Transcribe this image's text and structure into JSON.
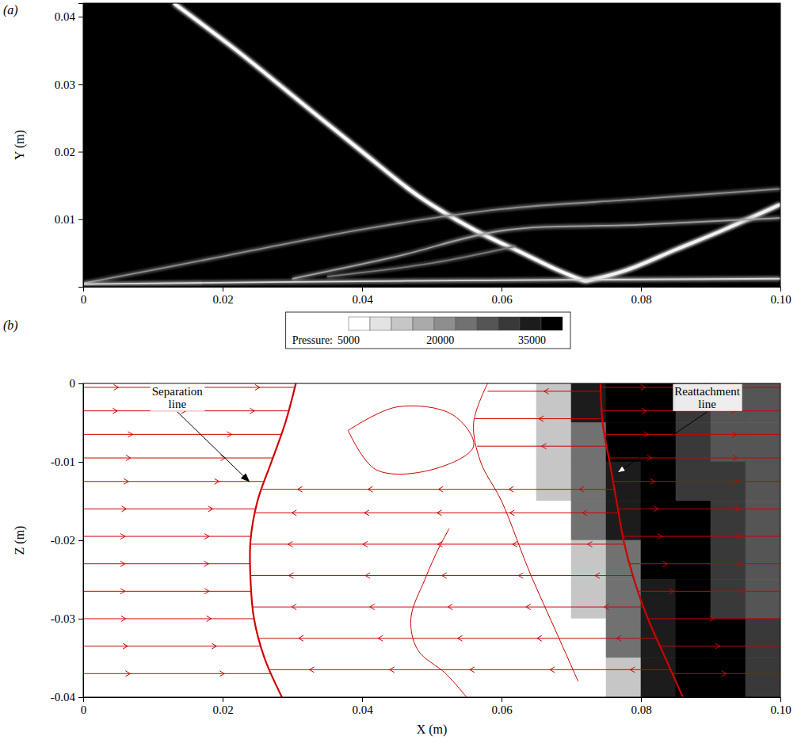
{
  "chart_data": [
    {
      "type": "line",
      "title": "(a)",
      "ylabel": "Y (m)",
      "color": "#000000",
      "xlim": [
        0,
        0.1
      ],
      "ylim": [
        0,
        0.042
      ],
      "xticks": [
        0,
        0.02,
        0.04,
        0.06,
        0.08,
        {
          "value": 0.1,
          "label": "0.10"
        }
      ],
      "yticks": [
        0.01,
        0.02,
        0.03,
        0.04
      ],
      "series": [
        {
          "color": "#ffffff",
          "line_style": "bold",
          "x": [
            0.013,
            0.022,
            0.031,
            0.04,
            0.048,
            0.056,
            0.063,
            0.068,
            0.072
          ],
          "values": [
            0.042,
            0.035,
            0.0275,
            0.02,
            0.0135,
            0.0085,
            0.005,
            0.0025,
            0.0008
          ]
        },
        {
          "color": "#f2f2f2",
          "line_style": "bold",
          "x": [
            0.072,
            0.078,
            0.085,
            0.092,
            0.1
          ],
          "values": [
            0.0008,
            0.0025,
            0.0055,
            0.0085,
            0.0122
          ]
        },
        {
          "color": "#8c8c8c",
          "line_style": "solid",
          "x": [
            0,
            0.02,
            0.04,
            0.06,
            0.08,
            0.1
          ],
          "values": [
            0.0005,
            0.0045,
            0.0085,
            0.0115,
            0.013,
            0.0145
          ]
        },
        {
          "color": "#a0a0a0",
          "line_style": "solid",
          "x": [
            0.03,
            0.045,
            0.06,
            0.08,
            0.1
          ],
          "values": [
            0.0012,
            0.0045,
            0.0083,
            0.0092,
            0.0102
          ]
        },
        {
          "color": "#787878",
          "line_style": "solid",
          "x": [
            0.035,
            0.05,
            0.062
          ],
          "values": [
            0.0015,
            0.0035,
            0.006
          ]
        },
        {
          "color": "#d8d8d8",
          "line_style": "solid",
          "x": [
            0,
            0.05,
            0.1
          ],
          "values": [
            0.0004,
            0.0009,
            0.0012
          ]
        }
      ]
    },
    {
      "type": "heatmap",
      "title": "(b)",
      "xlabel": "X (m)",
      "ylabel": "Z (m)",
      "xlim": [
        0,
        0.1
      ],
      "ylim": [
        -0.04,
        0
      ],
      "xticks": [
        0,
        0.02,
        0.04,
        0.06,
        0.08,
        {
          "value": 0.1,
          "label": "0.10"
        }
      ],
      "yticks": [
        0,
        -0.01,
        -0.02,
        -0.03,
        -0.04
      ],
      "clabel": "Pressure:",
      "clim": [
        5000,
        40000
      ],
      "cticks": [
        5000,
        20000,
        35000
      ],
      "cbins": [
        5000,
        8500,
        12000,
        15500,
        19000,
        22500,
        26000,
        29500,
        33000,
        36500,
        40000
      ],
      "xbins": [
        0,
        0.005,
        0.01,
        0.015,
        0.02,
        0.025,
        0.03,
        0.035,
        0.04,
        0.045,
        0.05,
        0.055,
        0.06,
        0.065,
        0.07,
        0.075,
        0.08,
        0.085,
        0.09,
        0.095,
        0.1
      ],
      "ybins": [
        0,
        -0.005,
        -0.01,
        -0.015,
        -0.02,
        -0.025,
        -0.03,
        -0.035,
        -0.04
      ],
      "cells": [
        [
          5000,
          5000,
          5000,
          5000,
          5000,
          5000,
          5000,
          5000,
          5000,
          5000,
          5000,
          5000,
          5000,
          12000,
          33000,
          38500,
          38500,
          32000,
          27000,
          27000
        ],
        [
          5000,
          5000,
          5000,
          5000,
          5000,
          5000,
          5000,
          5000,
          5000,
          5000,
          5000,
          5000,
          5000,
          12000,
          24000,
          38500,
          38500,
          32000,
          27000,
          27000
        ],
        [
          5000,
          5000,
          5000,
          5000,
          5000,
          5000,
          5000,
          5000,
          5000,
          5000,
          5000,
          5000,
          5000,
          12000,
          24000,
          33000,
          38500,
          32000,
          32000,
          27000
        ],
        [
          5000,
          5000,
          5000,
          5000,
          5000,
          5000,
          5000,
          5000,
          5000,
          5000,
          5000,
          5000,
          5000,
          5000,
          24000,
          33000,
          38500,
          38500,
          32000,
          27000
        ],
        [
          5000,
          5000,
          5000,
          5000,
          5000,
          5000,
          5000,
          5000,
          5000,
          5000,
          5000,
          5000,
          5000,
          5000,
          12000,
          24000,
          38500,
          38500,
          32000,
          27000
        ],
        [
          5000,
          5000,
          5000,
          5000,
          5000,
          5000,
          5000,
          5000,
          5000,
          5000,
          5000,
          5000,
          5000,
          5000,
          12000,
          24000,
          33000,
          38500,
          32000,
          27000
        ],
        [
          5000,
          5000,
          5000,
          5000,
          5000,
          5000,
          5000,
          5000,
          5000,
          5000,
          5000,
          5000,
          5000,
          5000,
          5000,
          24000,
          33000,
          38500,
          38500,
          32000
        ],
        [
          5000,
          5000,
          5000,
          5000,
          5000,
          5000,
          5000,
          5000,
          5000,
          5000,
          5000,
          5000,
          5000,
          5000,
          5000,
          12000,
          33000,
          38500,
          38500,
          32000
        ]
      ],
      "series": [
        {
          "color": "#d00000",
          "line_style": "solid",
          "marker": "arrow",
          "x": [
            0,
            0.0304,
            null,
            0,
            0.0295,
            null,
            0,
            0.0284,
            null,
            0,
            0.0272,
            null,
            0,
            0.026,
            null,
            0,
            0.0248,
            null,
            0,
            0.0241,
            null,
            0,
            0.024,
            null,
            0,
            0.0241,
            null,
            0,
            0.0245,
            null,
            0,
            0.0255,
            null,
            0,
            0.027
          ],
          "values": [
            -0.0005,
            -0.0005,
            null,
            -0.0035,
            -0.0035,
            null,
            -0.0065,
            -0.0065,
            null,
            -0.0095,
            -0.0095,
            null,
            -0.0125,
            -0.0125,
            null,
            -0.016,
            -0.016,
            null,
            -0.0195,
            -0.0195,
            null,
            -0.023,
            -0.023,
            null,
            -0.0265,
            -0.0265,
            null,
            -0.03,
            -0.03,
            null,
            -0.0335,
            -0.0335,
            null,
            -0.037,
            -0.037
          ]
        },
        {
          "color": "#d00000",
          "line_style": "solid",
          "marker": "arrow",
          "x": [
            0.0742,
            0.1,
            null,
            0.0744,
            0.1,
            null,
            0.0748,
            0.1,
            null,
            0.0754,
            0.1,
            null,
            0.076,
            0.1,
            null,
            0.0767,
            0.1,
            null,
            0.0774,
            0.1,
            null,
            0.0784,
            0.1,
            null,
            0.0796,
            0.1,
            null,
            0.081,
            0.1,
            null,
            0.0827,
            0.1,
            null,
            0.0845,
            0.1
          ],
          "values": [
            -0.0005,
            -0.0005,
            null,
            -0.0035,
            -0.0035,
            null,
            -0.0065,
            -0.0065,
            null,
            -0.0095,
            -0.0095,
            null,
            -0.0125,
            -0.0125,
            null,
            -0.016,
            -0.016,
            null,
            -0.0195,
            -0.0195,
            null,
            -0.023,
            -0.023,
            null,
            -0.0265,
            -0.0265,
            null,
            -0.03,
            -0.03,
            null,
            -0.0335,
            -0.0335,
            null,
            -0.037,
            -0.037
          ]
        },
        {
          "color": "#d00000",
          "line_style": "solid",
          "marker": "arrow",
          "x": [
            0.0742,
            0.058,
            null,
            0.0745,
            0.0562,
            null,
            0.075,
            0.0565,
            null,
            0.0762,
            0.0257,
            null,
            0.0768,
            0.0247,
            null,
            0.0777,
            0.024,
            null,
            0.0789,
            0.024,
            null,
            0.0803,
            0.0243,
            null,
            0.0822,
            0.0252,
            null,
            0.0842,
            0.0267
          ],
          "values": [
            -0.001,
            -0.001,
            null,
            -0.0045,
            -0.0045,
            null,
            -0.008,
            -0.008,
            null,
            -0.0135,
            -0.0135,
            null,
            -0.0165,
            -0.0165,
            null,
            -0.0205,
            -0.0205,
            null,
            -0.0245,
            -0.0245,
            null,
            -0.0285,
            -0.0285,
            null,
            -0.0325,
            -0.0325,
            null,
            -0.0365,
            -0.0365
          ]
        },
        {
          "color": "#d00000",
          "line_style": "bold",
          "x": [
            0.0305,
            0.029,
            0.027,
            0.025,
            0.024,
            0.024,
            0.0245,
            0.026,
            0.0285
          ],
          "values": [
            0,
            -0.005,
            -0.01,
            -0.015,
            -0.02,
            -0.025,
            -0.03,
            -0.035,
            -0.04
          ]
        },
        {
          "color": "#d00000",
          "line_style": "bold",
          "x": [
            0.0742,
            0.0745,
            0.0755,
            0.0765,
            0.0775,
            0.079,
            0.081,
            0.0835,
            0.086
          ],
          "values": [
            0,
            -0.005,
            -0.01,
            -0.015,
            -0.02,
            -0.025,
            -0.03,
            -0.035,
            -0.04
          ]
        },
        {
          "color": "#d00000",
          "line_style": "solid",
          "x": [
            0.058,
            0.056,
            0.057,
            0.06,
            0.064,
            0.068,
            0.071
          ],
          "values": [
            0,
            -0.005,
            -0.01,
            -0.015,
            -0.024,
            -0.032,
            -0.038
          ]
        },
        {
          "color": "#d00000",
          "line_style": "solid",
          "x": [
            0.0525,
            0.051,
            0.049,
            0.047,
            0.048,
            0.052,
            0.055
          ],
          "values": [
            -0.0185,
            -0.021,
            -0.025,
            -0.03,
            -0.034,
            -0.037,
            -0.04
          ]
        },
        {
          "color": "#d00000",
          "line_style": "solid",
          "x": [
            0.038,
            0.045,
            0.053,
            0.056,
            0.05,
            0.042,
            0.038
          ],
          "values": [
            -0.006,
            -0.003,
            -0.004,
            -0.008,
            -0.011,
            -0.011,
            -0.006
          ]
        }
      ],
      "annotations": [
        {
          "text": "Separation line",
          "x": 0.0135,
          "y": -0.0017,
          "target_x": 0.0238,
          "target_y": -0.0125
        },
        {
          "text": "Reattachment line",
          "x": 0.0895,
          "y": -0.0017,
          "target_x": 0.0766,
          "target_y": -0.0114
        }
      ]
    }
  ]
}
